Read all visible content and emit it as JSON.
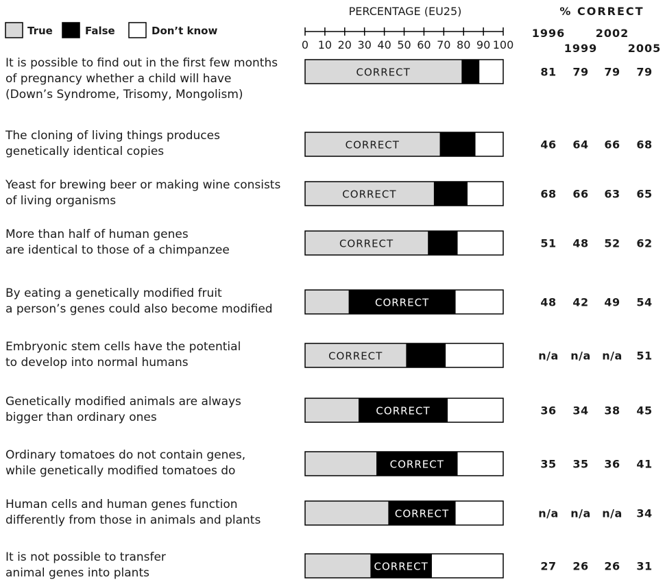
{
  "legend": [
    {
      "label": "True",
      "color": "#d9d9d9"
    },
    {
      "label": "False",
      "color": "#000000"
    },
    {
      "label": "Don’t know",
      "color": "#ffffff"
    }
  ],
  "colors": {
    "true": "#d9d9d9",
    "false": "#000000",
    "dont_know": "#ffffff",
    "border": "#000000"
  },
  "chart_data": {
    "type": "bar",
    "orientation": "horizontal",
    "stacked": true,
    "axis_title": "PERCENTAGE (EU25)",
    "xlim": [
      0,
      100
    ],
    "ticks": [
      "0",
      "10",
      "20",
      "30",
      "40",
      "50",
      "60",
      "70",
      "80",
      "90",
      "100"
    ],
    "correct_header": "% CORRECT",
    "correct_years": [
      "1996",
      "1999",
      "2002",
      "2005"
    ],
    "correct_label": "CORRECT",
    "rows": [
      {
        "lines": [
          "It is possible to find out in the first few months",
          "of pregnancy whether a child will have",
          "(Down’s Syndrome, Trisomy, Mongolism)"
        ],
        "true": 79,
        "false": 9,
        "dont_know": 12,
        "correct": "true",
        "pct_correct": [
          "81",
          "79",
          "79",
          "79"
        ]
      },
      {
        "lines": [
          "The cloning of living things produces",
          "genetically identical copies"
        ],
        "true": 68,
        "false": 18,
        "dont_know": 14,
        "correct": "true",
        "pct_correct": [
          "46",
          "64",
          "66",
          "68"
        ]
      },
      {
        "lines": [
          "Yeast for brewing beer or making wine consists",
          "of living organisms"
        ],
        "true": 65,
        "false": 17,
        "dont_know": 18,
        "correct": "true",
        "pct_correct": [
          "68",
          "66",
          "63",
          "65"
        ]
      },
      {
        "lines": [
          "More than half of human genes",
          "are identical to those of  a chimpanzee"
        ],
        "true": 62,
        "false": 15,
        "dont_know": 23,
        "correct": "true",
        "pct_correct": [
          "51",
          "48",
          "52",
          "62"
        ]
      },
      {
        "lines": [
          "By eating a genetically modified fruit",
          "a person’s genes could also become modified"
        ],
        "true": 22,
        "false": 54,
        "dont_know": 24,
        "correct": "false",
        "pct_correct": [
          "48",
          "42",
          "49",
          "54"
        ]
      },
      {
        "lines": [
          "Embryonic stem cells have the potential",
          "to develop into normal humans"
        ],
        "true": 51,
        "false": 20,
        "dont_know": 29,
        "correct": "true",
        "pct_correct": [
          "n/a",
          "n/a",
          "n/a",
          "51"
        ]
      },
      {
        "lines": [
          "Genetically modified animals are always",
          "bigger than ordinary ones"
        ],
        "true": 27,
        "false": 45,
        "dont_know": 28,
        "correct": "false",
        "pct_correct": [
          "36",
          "34",
          "38",
          "45"
        ]
      },
      {
        "lines": [
          "Ordinary tomatoes do not contain genes,",
          "while genetically modified tomatoes do"
        ],
        "true": 36,
        "false": 41,
        "dont_know": 23,
        "correct": "false",
        "pct_correct": [
          "35",
          "35",
          "36",
          "41"
        ]
      },
      {
        "lines": [
          "Human cells and human genes function",
          "differently from those in animals and plants"
        ],
        "true": 42,
        "false": 34,
        "dont_know": 24,
        "correct": "false",
        "pct_correct": [
          "n/a",
          "n/a",
          "n/a",
          "34"
        ]
      },
      {
        "lines": [
          "It is not possible to transfer",
          "animal genes into plants"
        ],
        "true": 33,
        "false": 31,
        "dont_know": 36,
        "correct": "false",
        "pct_correct": [
          "27",
          "26",
          "26",
          "31"
        ]
      }
    ]
  }
}
